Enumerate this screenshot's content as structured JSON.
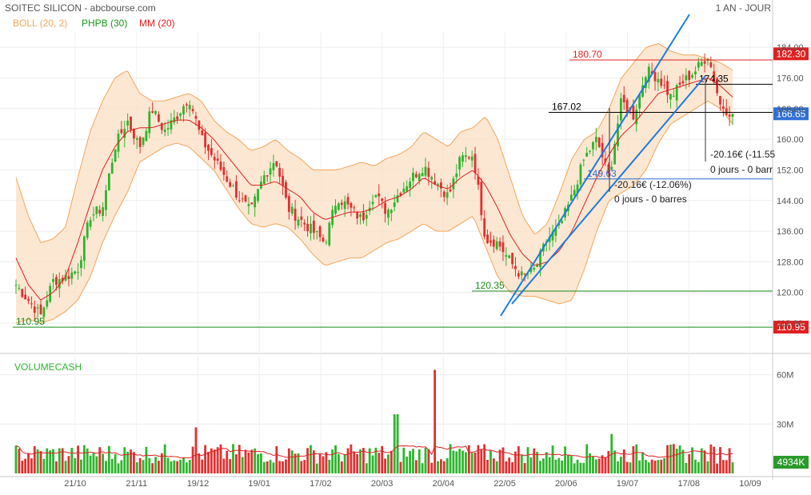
{
  "header": {
    "title": "SOITEC SILICON - abcbourse.com",
    "period": "1 AN - JOUR"
  },
  "legend": [
    {
      "label": "BOLL (20, 2)",
      "color": "#f2a65a"
    },
    {
      "label": "PHPB (30)",
      "color": "#1a9a1a"
    },
    {
      "label": "MM (20)",
      "color": "#e02020"
    }
  ],
  "volume_panel": {
    "title": "VOLUMECASH",
    "last_badge": "4934K"
  },
  "colors": {
    "up": "#2db52d",
    "down": "#e03030",
    "band": "#fbe1c8",
    "band_line": "#f2a65a",
    "ma": "#e02020",
    "trend": "#1e7be0",
    "support_line": "#1a8a1a",
    "resistance_line": "#e02020",
    "badge_red": "#e02020",
    "badge_blue": "#2f6fd6",
    "badge_green": "#2a9a2a"
  },
  "chart_data": [
    {
      "type": "candlestick",
      "title": "SOITEC SILICON",
      "ylim": [
        107,
        188
      ],
      "y_ticks": [
        112,
        120,
        128,
        136,
        144,
        152,
        160,
        168,
        176,
        184
      ],
      "x_tick_labels": [
        "21/10",
        "21/11",
        "19/12",
        "19/01",
        "17/02",
        "20/03",
        "20/04",
        "22/05",
        "20/06",
        "19/07",
        "17/08",
        "10/09"
      ],
      "price_badges": [
        {
          "label": "182.30",
          "value": 182.3,
          "color": "#e02020"
        },
        {
          "label": "166.65",
          "value": 166.65,
          "color": "#2f6fd6"
        },
        {
          "label": "110.95",
          "value": 110.95,
          "color": "#e02020"
        }
      ],
      "annotations": [
        {
          "label": "180.70",
          "value": 180.7,
          "color": "#e02020"
        },
        {
          "label": "174.35",
          "value": 174.35,
          "color": "#000000"
        },
        {
          "label": "167.02",
          "value": 167.02,
          "color": "#000000"
        },
        {
          "label": "149.63",
          "value": 149.63,
          "color": "#2f6fd6"
        },
        {
          "label": "120.35",
          "value": 120.35,
          "color": "#1a8a1a"
        },
        {
          "label": "110.95",
          "value": 110.95,
          "color": "#1a8a1a"
        }
      ],
      "measure_labels": [
        {
          "line1": "-20.16€ (-12.06%)",
          "line2": "0 jours - 0 barres"
        },
        {
          "line1": "-20.16€ (-11.55",
          "line2": "0 jours - 0 barr"
        }
      ],
      "price_path": [
        122,
        118,
        114,
        123,
        124,
        126,
        140,
        142,
        158,
        165,
        158,
        168,
        162,
        166,
        171,
        160,
        155,
        150,
        145,
        141,
        150,
        155,
        142,
        139,
        136,
        133,
        145,
        142,
        139,
        146,
        141,
        146,
        150,
        153,
        149,
        145,
        155,
        156,
        134,
        133,
        128,
        124,
        126,
        134,
        137,
        145,
        155,
        160,
        150,
        170,
        166,
        178,
        176,
        171,
        175,
        178,
        182,
        169,
        166.65
      ],
      "ma20_path": [
        129,
        122,
        118,
        120,
        124,
        133,
        143,
        152,
        158,
        162,
        163,
        163,
        164,
        165,
        165,
        163,
        160,
        156,
        152,
        148,
        148,
        149,
        147,
        145,
        141,
        139,
        140,
        141,
        141,
        142,
        144,
        145,
        147,
        150,
        148,
        147,
        150,
        152,
        148,
        142,
        135,
        130,
        127,
        128,
        131,
        136,
        143,
        150,
        156,
        161,
        164,
        168,
        172,
        173,
        174,
        175,
        176,
        174,
        171
      ],
      "boll_upper_path": [
        150,
        140,
        133,
        134,
        137,
        150,
        162,
        170,
        176,
        178,
        172,
        170,
        170,
        171,
        172,
        170,
        165,
        162,
        160,
        157,
        158,
        160,
        157,
        155,
        152,
        152,
        152,
        153,
        154,
        153,
        155,
        156,
        158,
        162,
        160,
        158,
        162,
        163,
        166,
        160,
        150,
        140,
        135,
        138,
        146,
        155,
        160,
        162,
        168,
        176,
        180,
        184,
        185,
        183,
        182,
        182,
        181,
        180,
        178
      ],
      "boll_lower_path": [
        112,
        113,
        112,
        113,
        115,
        118,
        124,
        133,
        140,
        146,
        154,
        156,
        158,
        159,
        158,
        155,
        152,
        147,
        142,
        138,
        137,
        138,
        137,
        134,
        130,
        127,
        128,
        129,
        129,
        131,
        133,
        134,
        136,
        138,
        136,
        136,
        138,
        140,
        132,
        124,
        120,
        119,
        119,
        118,
        117,
        118,
        126,
        136,
        144,
        146,
        148,
        152,
        159,
        164,
        166,
        168,
        170,
        168,
        164
      ],
      "volume_ylim": [
        0,
        70
      ],
      "volume_ticks": [
        {
          "label": "60M",
          "value": 60
        },
        {
          "label": "30M",
          "value": 30
        }
      ],
      "volume_spikes": [
        {
          "position": 0.25,
          "value": 28
        },
        {
          "position": 0.585,
          "value": 63
        },
        {
          "position": 0.53,
          "value": 36
        },
        {
          "position": 0.83,
          "value": 24
        }
      ]
    }
  ]
}
